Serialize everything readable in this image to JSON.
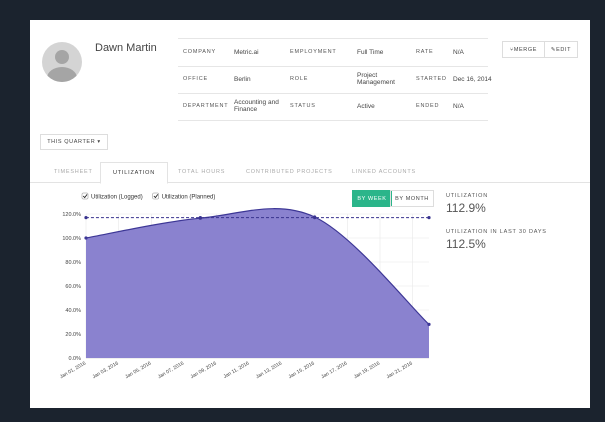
{
  "profile": {
    "name": "Dawn Martin"
  },
  "details": [
    [
      {
        "label": "COMPANY",
        "value": "Metric.ai"
      },
      {
        "label": "EMPLOYMENT",
        "value": "Full Time"
      },
      {
        "label": "RATE",
        "value": "N/A"
      }
    ],
    [
      {
        "label": "OFFICE",
        "value": "Berlin"
      },
      {
        "label": "ROLE",
        "value": "Project Management"
      },
      {
        "label": "STARTED",
        "value": "Dec 16, 2014"
      }
    ],
    [
      {
        "label": "DEPARTMENT",
        "value": "Accounting and Finance"
      },
      {
        "label": "STATUS",
        "value": "Active"
      },
      {
        "label": "ENDED",
        "value": "N/A"
      }
    ]
  ],
  "actions": [
    "MERGE",
    "EDIT"
  ],
  "period": "THIS QUARTER",
  "tabs": [
    {
      "label": "TIMESHEET"
    },
    {
      "label": "UTILIZATION",
      "active": true
    },
    {
      "label": "TOTAL HOURS"
    },
    {
      "label": "CONTRIBUTED PROJECTS"
    },
    {
      "label": "LINKED ACCOUNTS"
    }
  ],
  "chart": {
    "type": "area",
    "toggle": [
      {
        "label": "BY WEEK",
        "active": true
      },
      {
        "label": "BY MONTH"
      }
    ],
    "x": [
      "Jan 01, 2016",
      "Jan 08, 2016",
      "Jan 15, 2016",
      "Jan 22, 2016"
    ],
    "xlim": [
      "Jan 01, 2016",
      "Jan 22, 2016"
    ],
    "xticks": [
      "Jan 01, 2016",
      "Jan 03, 2016",
      "Jan 05, 2016",
      "Jan 07, 2016",
      "Jan 09, 2016",
      "Jan 11, 2016",
      "Jan 13, 2016",
      "Jan 15, 2016",
      "Jan 17, 2016",
      "Jan 19, 2016",
      "Jan 21, 2016"
    ],
    "ylim": [
      0,
      120
    ],
    "yticks": [
      {
        "value": 0,
        "label": "0.0%"
      },
      {
        "value": 20,
        "label": "20.0%"
      },
      {
        "value": 40,
        "label": "40.0%"
      },
      {
        "value": 60,
        "label": "60.0%"
      },
      {
        "value": 80,
        "label": "80.0%"
      },
      {
        "value": 100,
        "label": "100.0%"
      },
      {
        "value": 120,
        "label": "120.0%"
      }
    ],
    "grid": true,
    "series": [
      {
        "name": "Utilization (Logged)",
        "color": "#8a82cf",
        "values": [
          100,
          116.5,
          117.5,
          28
        ]
      },
      {
        "name": "Utilization (Planned)",
        "color": "#39338f",
        "dashed": true,
        "values": [
          117,
          117,
          117,
          117
        ]
      }
    ]
  },
  "stats": [
    {
      "label": "UTILIZATION",
      "value": "112.9%"
    },
    {
      "label": "UTILIZATION IN LAST 30 DAYS",
      "value": "112.5%"
    }
  ]
}
